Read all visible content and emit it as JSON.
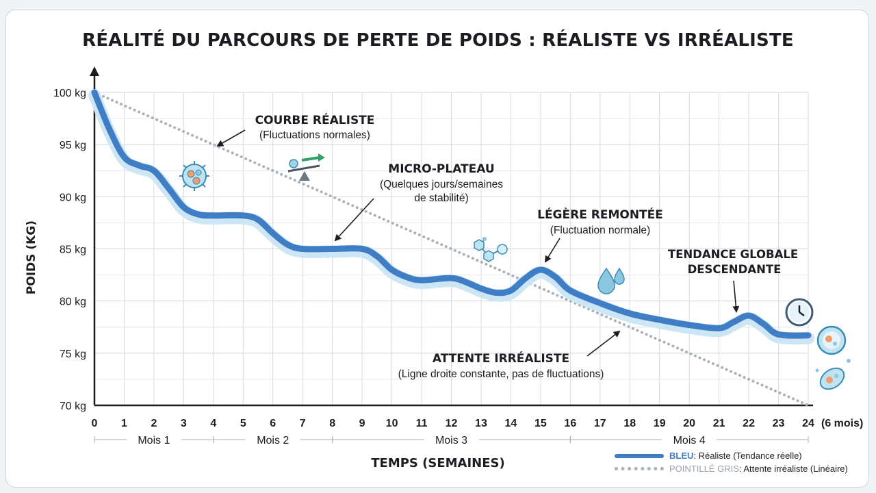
{
  "chart_data": {
    "type": "line",
    "title": "RÉALITÉ DU PARCOURS DE PERTE DE POIDS : RÉALISTE VS IRRÉALISTE",
    "xlabel": "TEMPS (SEMAINES)",
    "ylabel": "POIDS (KG)",
    "x_end_note": "(6 mois)",
    "xlim": [
      0,
      24
    ],
    "ylim": [
      70,
      100
    ],
    "x_ticks": [
      0,
      1,
      2,
      3,
      4,
      5,
      6,
      7,
      8,
      9,
      10,
      11,
      12,
      13,
      14,
      15,
      16,
      17,
      18,
      19,
      20,
      21,
      22,
      23,
      24
    ],
    "y_ticks": [
      {
        "value": 100,
        "label": "100 kg"
      },
      {
        "value": 95,
        "label": "95 kg"
      },
      {
        "value": 90,
        "label": "90 kg"
      },
      {
        "value": 85,
        "label": "85 kg"
      },
      {
        "value": 80,
        "label": "80 kg"
      },
      {
        "value": 75,
        "label": "75 kg"
      },
      {
        "value": 70,
        "label": "70 kg"
      }
    ],
    "months": [
      {
        "label": "Mois 1",
        "start": 0,
        "end": 4
      },
      {
        "label": "Mois 2",
        "start": 4,
        "end": 8
      },
      {
        "label": "Mois 3",
        "start": 8,
        "end": 16
      },
      {
        "label": "Mois 4",
        "start": 16,
        "end": 24
      }
    ],
    "series": [
      {
        "name": "BLEU",
        "color": "#3f7dc4",
        "x": [
          0,
          0.5,
          1,
          1.5,
          2,
          2.5,
          3,
          3.5,
          4,
          5,
          5.5,
          6,
          6.5,
          7,
          8,
          9,
          9.5,
          10,
          10.5,
          11,
          12,
          12.5,
          13,
          13.5,
          14,
          14.5,
          15,
          15.5,
          16,
          17,
          18,
          19,
          20,
          21,
          21.5,
          22,
          22.5,
          23,
          24
        ],
        "y": [
          100,
          96.5,
          93.8,
          93.0,
          92.5,
          90.8,
          89.0,
          88.3,
          88.2,
          88.2,
          87.8,
          86.5,
          85.4,
          85.0,
          85.0,
          85.0,
          84.3,
          83.0,
          82.3,
          82.0,
          82.2,
          81.8,
          81.2,
          80.8,
          81.0,
          82.2,
          83.0,
          82.3,
          81.0,
          79.8,
          78.8,
          78.2,
          77.7,
          77.4,
          78.0,
          78.6,
          77.8,
          76.8,
          76.7
        ]
      },
      {
        "name": "POINTILLÉ GRIS",
        "color": "#a9b0b6",
        "x": [
          0,
          24
        ],
        "y": [
          100,
          70
        ]
      }
    ],
    "annotations": [
      {
        "title": "COURBE RÉALISTE",
        "subtitle": "(Fluctuations normales)"
      },
      {
        "title": "MICRO-PLATEAU",
        "subtitle_line1": "(Quelques jours/semaines",
        "subtitle_line2": "de stabilité)"
      },
      {
        "title": "LÉGÈRE REMONTÉE",
        "subtitle": "(Fluctuation normale)"
      },
      {
        "title_line1": "TENDANCE GLOBALE",
        "title_line2": "DESCENDANTE"
      },
      {
        "title": "ATTENTE IRRÉALISTE",
        "subtitle": "(Ligne droite constante, pas de fluctuations)"
      }
    ],
    "legend": {
      "position": "bottom-right",
      "items": [
        {
          "name": "BLEU",
          "desc": " : Réaliste (Tendance réelle)"
        },
        {
          "name": "POINTILLÉ GRIS",
          "desc": " : Attente irréaliste (Linéaire)"
        }
      ]
    },
    "grid": true
  },
  "icons": [
    "bacteria-icon",
    "balance-scale-icon",
    "molecule-icon",
    "water-drops-icon",
    "clock-icon",
    "cell-icon",
    "microbe-icon"
  ]
}
